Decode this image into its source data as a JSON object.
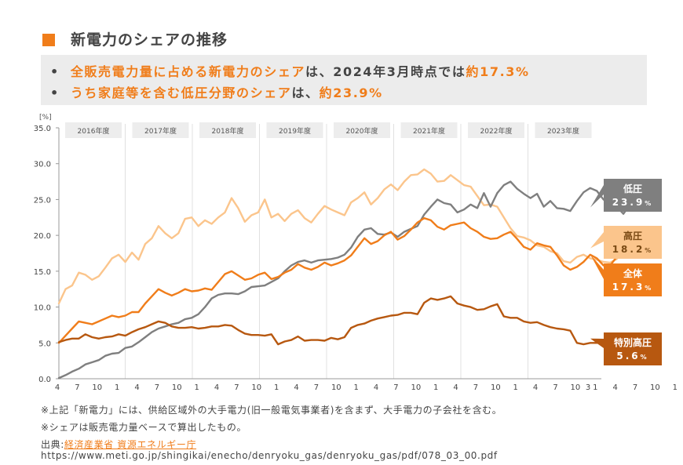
{
  "header": {
    "title": "新電力のシェアの推移",
    "bullets": [
      {
        "orange": "全販売電力量に占める新電力のシェア",
        "dark": "は、2024年3月時点では",
        "orange2": "約17.3%"
      },
      {
        "orange": "うち家庭等を含む低圧分野のシェア",
        "dark": "は、",
        "orange2": "約23.9%"
      }
    ]
  },
  "notes": {
    "note1": "※上記「新電力」には、供給区域外の大手電力(旧一般電気事業者)を含まず、大手電力の子会社を含む。",
    "note2": "※シェアは販売電力量ベースで算出したもの。",
    "source_prefix": "出典:",
    "source_link": "経済産業省 資源エネルギー庁",
    "source_url": "https://www.meti.go.jp/shingikai/enecho/denryoku_gas/denryoku_gas/pdf/078_03_00.pdf"
  },
  "chart_data": {
    "type": "line",
    "title": "",
    "ylabel": "[%]",
    "ylim": [
      0,
      35
    ],
    "yticks": [
      "0.0",
      "5.0",
      "10.0",
      "15.0",
      "20.0",
      "25.0",
      "30.0",
      "35.0"
    ],
    "fiscal_years": [
      "2016年度",
      "2017年度",
      "2018年度",
      "2019年度",
      "2020年度",
      "2021年度",
      "2022年度",
      "2023年度"
    ],
    "x_month_labels": [
      "4",
      "7",
      "10",
      "1",
      "4",
      "7",
      "10",
      "1",
      "4",
      "7",
      "10",
      "1",
      "4",
      "7",
      "10",
      "1",
      "4",
      "7",
      "10",
      "1",
      "4",
      "7",
      "10",
      "1",
      "4",
      "7",
      "10",
      "1",
      "4",
      "7",
      "10",
      "1",
      "3"
    ],
    "grid": false,
    "series": [
      {
        "name": "低圧",
        "end_label": "低圧",
        "end_value": "23.9",
        "unit": "%",
        "color": "#7f7f7f",
        "label_bg": "#7f7f7f",
        "values": [
          0.1,
          0.5,
          1.0,
          1.4,
          2.0,
          2.3,
          2.6,
          3.2,
          3.5,
          3.6,
          4.3,
          4.5,
          5.1,
          5.8,
          6.5,
          7.0,
          7.3,
          7.6,
          7.8,
          8.3,
          8.5,
          9.0,
          10.0,
          11.2,
          11.7,
          11.9,
          11.9,
          11.8,
          12.2,
          12.8,
          12.9,
          13.0,
          13.5,
          14.0,
          15.0,
          15.8,
          16.3,
          16.5,
          16.2,
          16.5,
          16.6,
          16.7,
          16.9,
          17.3,
          18.3,
          19.8,
          20.8,
          21.0,
          20.2,
          20.1,
          20.4,
          19.8,
          20.5,
          20.9,
          21.3,
          22.9,
          24.0,
          25.0,
          24.5,
          24.3,
          23.2,
          23.6,
          24.3,
          23.8,
          25.9,
          24.0,
          25.9,
          27.0,
          27.5,
          26.5,
          25.8,
          25.2,
          25.8,
          24.0,
          24.8,
          23.8,
          23.7,
          23.4,
          24.8,
          26.0,
          26.6,
          26.2,
          25.0,
          24.2,
          24.0,
          23.0,
          24.3,
          23.9
        ]
      },
      {
        "name": "高圧",
        "end_label": "高圧",
        "end_value": "18.2",
        "unit": "%",
        "color": "#fbc58c",
        "label_bg": "#fbc58c",
        "values": [
          10.5,
          12.5,
          13.0,
          14.8,
          14.5,
          13.8,
          14.3,
          15.5,
          16.8,
          17.3,
          16.3,
          17.6,
          16.6,
          18.8,
          19.6,
          21.3,
          20.3,
          19.6,
          20.3,
          22.3,
          22.5,
          21.3,
          22.1,
          21.6,
          22.5,
          23.2,
          25.2,
          23.8,
          21.9,
          22.8,
          23.2,
          25.0,
          22.5,
          23.0,
          22.0,
          23.0,
          23.5,
          22.4,
          21.8,
          23.0,
          24.1,
          23.6,
          23.2,
          22.8,
          24.6,
          25.2,
          26.0,
          24.3,
          25.2,
          26.4,
          27.1,
          26.3,
          27.5,
          28.4,
          28.5,
          29.2,
          28.6,
          27.5,
          27.6,
          28.4,
          27.7,
          27.0,
          26.8,
          25.5,
          24.2,
          24.3,
          24.0,
          22.5,
          21.0,
          19.9,
          19.7,
          19.3,
          18.6,
          18.4,
          17.8,
          17.5,
          16.4,
          16.2,
          17.0,
          17.3,
          16.8,
          16.6,
          16.3,
          16.2,
          16.7,
          17.9,
          18.3,
          18.2
        ]
      },
      {
        "name": "全体",
        "end_label": "全体",
        "end_value": "17.3",
        "unit": "%",
        "color": "#f07d1a",
        "label_bg": "#f07d1a",
        "values": [
          5.0,
          6.0,
          7.0,
          8.0,
          7.8,
          7.6,
          8.0,
          8.4,
          8.8,
          8.6,
          8.8,
          9.3,
          9.3,
          10.5,
          11.5,
          12.5,
          12.0,
          11.6,
          12.0,
          12.5,
          12.2,
          12.3,
          12.6,
          12.4,
          13.5,
          14.6,
          15.0,
          14.4,
          13.8,
          14.0,
          14.5,
          14.8,
          13.9,
          14.2,
          14.8,
          15.2,
          16.0,
          15.5,
          15.2,
          15.6,
          16.2,
          15.8,
          16.1,
          16.5,
          17.2,
          18.4,
          19.6,
          18.8,
          19.2,
          20.0,
          20.5,
          19.4,
          19.9,
          20.8,
          21.8,
          22.4,
          22.1,
          21.2,
          20.8,
          21.4,
          21.6,
          21.8,
          21.0,
          20.5,
          19.8,
          19.5,
          19.6,
          20.1,
          20.5,
          19.5,
          18.4,
          18.0,
          18.9,
          18.6,
          18.4,
          17.2,
          15.8,
          15.2,
          15.6,
          16.3,
          17.3,
          16.8,
          15.8,
          15.8,
          17.0,
          17.6,
          17.8,
          17.3
        ]
      },
      {
        "name": "特別高圧",
        "end_label": "特別高圧",
        "end_value": "5.6",
        "unit": "%",
        "color": "#b75810",
        "label_bg": "#b75810",
        "values": [
          5.1,
          5.4,
          5.6,
          5.6,
          6.2,
          5.8,
          5.6,
          5.8,
          5.9,
          6.2,
          6.0,
          6.5,
          6.9,
          7.2,
          7.6,
          8.0,
          7.8,
          7.3,
          7.1,
          7.1,
          7.2,
          7.0,
          7.1,
          7.3,
          7.3,
          7.5,
          7.4,
          6.8,
          6.3,
          6.1,
          6.1,
          6.0,
          6.2,
          4.8,
          5.2,
          5.4,
          5.9,
          5.3,
          5.4,
          5.4,
          5.3,
          5.7,
          5.5,
          5.8,
          7.1,
          7.5,
          7.7,
          8.1,
          8.4,
          8.6,
          8.8,
          8.9,
          9.2,
          9.2,
          9.0,
          10.6,
          11.2,
          11.0,
          11.2,
          11.5,
          10.5,
          10.2,
          10.0,
          9.6,
          9.7,
          10.1,
          10.4,
          8.7,
          8.5,
          8.5,
          8.0,
          7.8,
          7.9,
          7.5,
          7.2,
          7.0,
          6.9,
          6.7,
          5.0,
          4.8,
          5.0,
          5.0,
          5.2,
          5.0,
          5.6,
          5.3,
          5.9,
          5.6
        ]
      }
    ]
  }
}
